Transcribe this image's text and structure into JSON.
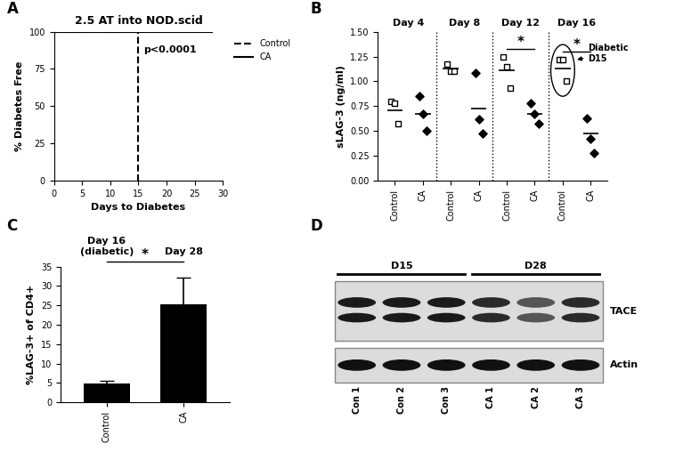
{
  "chart_data": [
    {
      "type": "line",
      "panel_label": "A",
      "title": "2.5 AT into NOD.scid",
      "x_label": "Days to Diabetes",
      "y_label": "% Diabetes Free",
      "series": [
        {
          "name": "Control",
          "color": "#000000",
          "line_style": "dashed",
          "x": [
            0,
            15,
            15
          ],
          "values": [
            100,
            100,
            0
          ]
        },
        {
          "name": "CA",
          "color": "#000000",
          "line_style": "solid",
          "x": [
            0,
            28
          ],
          "values": [
            100,
            100
          ]
        }
      ],
      "annotation": "p<0.0001",
      "xlim": [
        0,
        30
      ],
      "xticks": [
        0,
        5,
        10,
        15,
        20,
        25,
        30
      ],
      "ylim": [
        0,
        100
      ],
      "yticks": [
        0,
        25,
        50,
        75,
        100
      ],
      "legend": "upper left"
    },
    {
      "type": "scatter",
      "panel_label": "B",
      "y_label": "sLAG-3 (ng/ml)",
      "categories": [
        "Day 4",
        "Day 8",
        "Day 12",
        "Day 16"
      ],
      "series": [
        {
          "name": "Control",
          "color": "#000000",
          "marker": "open square",
          "values": [
            [
              0.8,
              0.78,
              0.57
            ],
            [
              1.17,
              1.1,
              1.1
            ],
            [
              1.25,
              1.15,
              0.93
            ],
            [
              1.22,
              1.22,
              1.0
            ]
          ],
          "means": [
            0.71,
            1.13,
            1.11,
            1.13
          ]
        },
        {
          "name": "CA",
          "color": "#000000",
          "marker": "diamond",
          "values": [
            [
              0.85,
              0.67,
              0.5
            ],
            [
              1.08,
              0.62,
              0.48
            ],
            [
              0.78,
              0.67,
              0.57
            ],
            [
              0.63,
              0.42,
              0.28
            ]
          ],
          "means": [
            0.67,
            0.73,
            0.67,
            0.48
          ]
        }
      ],
      "significance": {
        "label": "*",
        "groups": [
          "Day 12",
          "Day 16"
        ]
      },
      "annotation": {
        "text": "Diabetic\nD15",
        "group": "Day 16",
        "series": "Control"
      },
      "ylim": [
        0,
        1.5
      ],
      "yticks": [
        {
          "value": 0,
          "label": "0.00"
        },
        {
          "value": 0.25,
          "label": "0.25"
        },
        {
          "value": 0.5,
          "label": "0.50"
        },
        {
          "value": 0.75,
          "label": "0.75"
        },
        {
          "value": 1.0,
          "label": "1.00"
        },
        {
          "value": 1.25,
          "label": "1.25"
        },
        {
          "value": 1.5,
          "label": "1.50"
        }
      ]
    },
    {
      "type": "bar",
      "panel_label": "C",
      "y_label": "%LAG-3+ of CD4+",
      "categories": [
        "Control",
        "CA"
      ],
      "values": [
        4.8,
        25.2
      ],
      "errors": [
        0.8,
        7.0
      ],
      "group_labels": [
        "Day 16\n(diabetic)",
        "Day 28"
      ],
      "significance": {
        "label": "*"
      },
      "color": "#000000",
      "ylim": [
        0,
        35
      ],
      "yticks": [
        0,
        5,
        10,
        15,
        20,
        25,
        30,
        35
      ]
    }
  ],
  "blot": {
    "panel_label": "D",
    "timepoints": [
      {
        "label": "D15",
        "lanes": [
          "Con 1",
          "Con 2",
          "Con 3"
        ]
      },
      {
        "label": "D28",
        "lanes": [
          "CA 1",
          "CA 2",
          "CA 3"
        ]
      }
    ],
    "rows": [
      "TACE",
      "Actin"
    ]
  }
}
